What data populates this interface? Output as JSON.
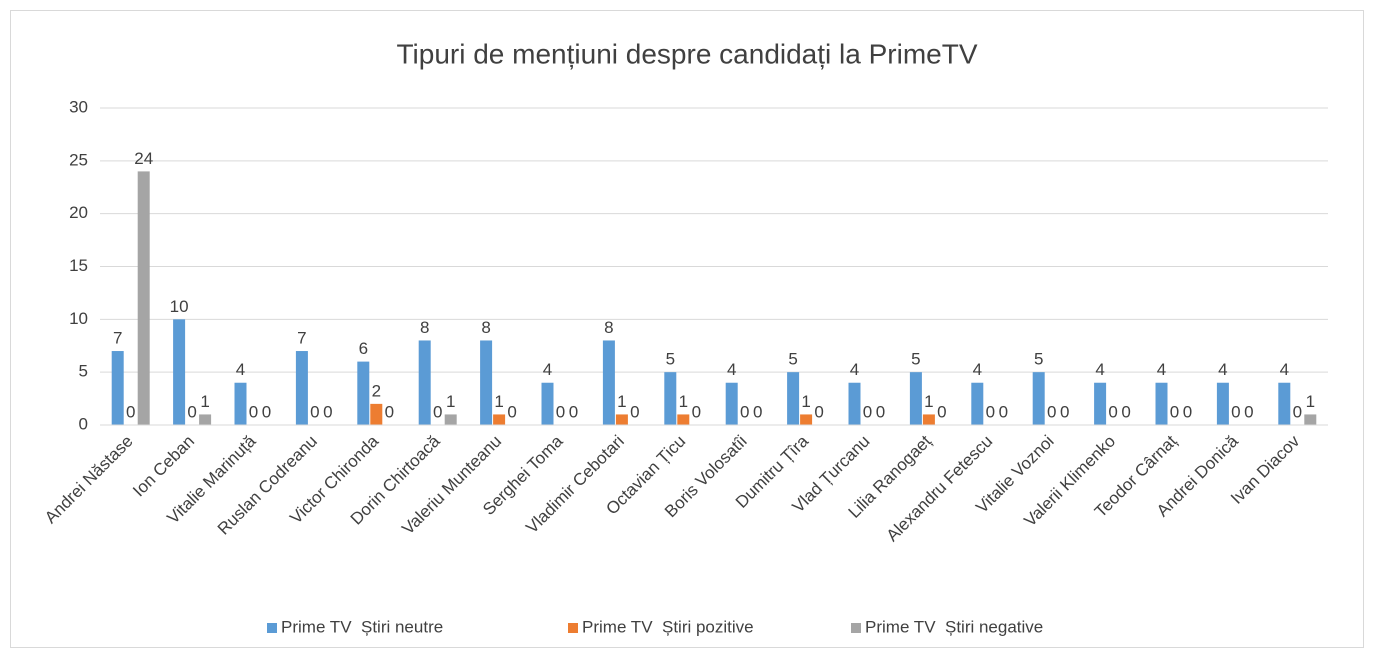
{
  "chart_data": {
    "type": "bar",
    "title": "Tipuri de mențiuni despre candidați la PrimeTV",
    "categories": [
      "Andrei Năstase",
      "Ion Ceban",
      "Vitalie Marinuță",
      "Ruslan Codreanu",
      "Victor Chironda",
      "Dorin Chirtoacă",
      "Valeriu Munteanu",
      "Serghei Toma",
      "Vladimir Cebotari",
      "Octavian Țicu",
      "Boris Volosatîi",
      "Dumitru Țîra",
      "Vlad Țurcanu",
      "Lilia Ranogaeț",
      "Alexandru Fetescu",
      "Vitalie Voznoi",
      "Valerii Klimenko",
      "Teodor Cârnaț",
      "Andrei Donică",
      "Ivan Diacov"
    ],
    "series": [
      {
        "name": "Prime TV  Știri neutre",
        "color": "#5b9bd5",
        "values": [
          7,
          10,
          4,
          7,
          6,
          8,
          8,
          4,
          8,
          5,
          4,
          5,
          4,
          5,
          4,
          5,
          4,
          4,
          4,
          4
        ]
      },
      {
        "name": "Prime TV  Știri pozitive",
        "color": "#ed7d31",
        "values": [
          0,
          0,
          0,
          0,
          2,
          0,
          1,
          0,
          1,
          1,
          0,
          1,
          0,
          1,
          0,
          0,
          0,
          0,
          0,
          0
        ]
      },
      {
        "name": "Prime TV  Știri negative",
        "color": "#a5a5a5",
        "values": [
          24,
          1,
          0,
          0,
          0,
          1,
          0,
          0,
          0,
          0,
          0,
          0,
          0,
          0,
          0,
          0,
          0,
          0,
          0,
          1
        ]
      }
    ],
    "ylim": [
      0,
      30
    ],
    "yticks": [
      0,
      5,
      10,
      15,
      20,
      25,
      30
    ],
    "grid": true,
    "legend": "bottom"
  }
}
